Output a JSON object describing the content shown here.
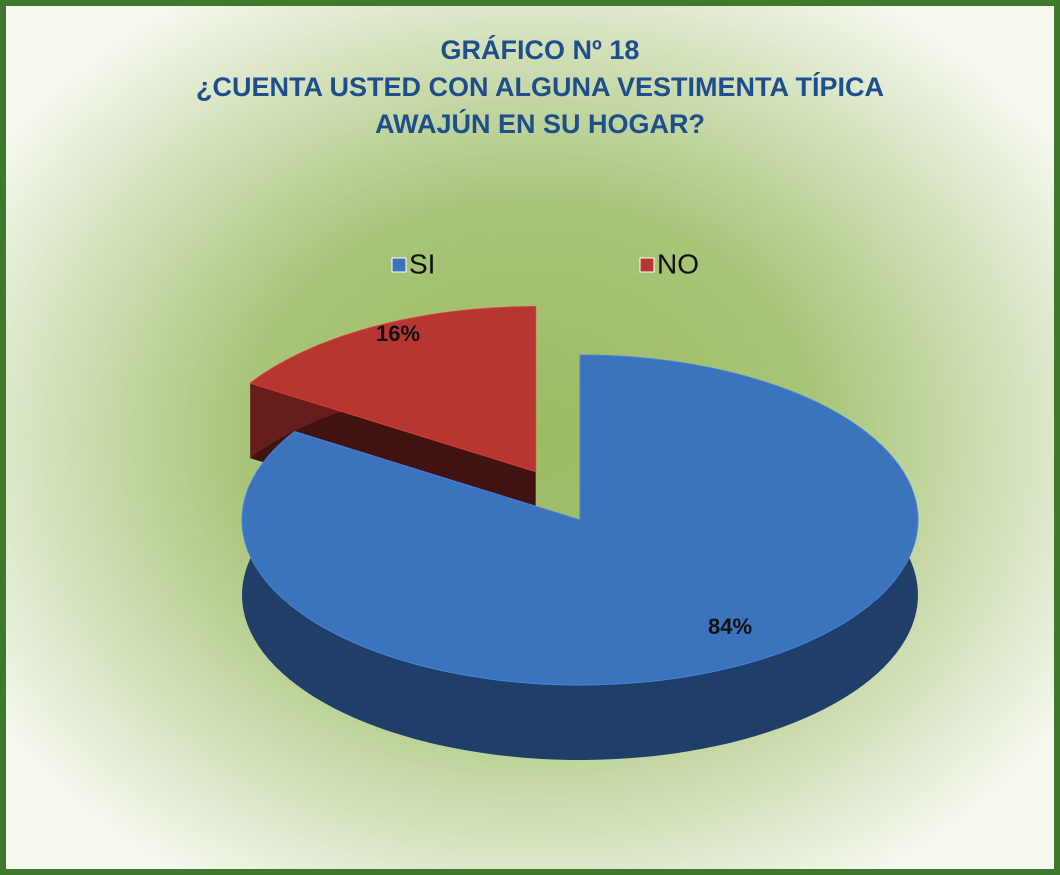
{
  "chart_data": {
    "type": "pie",
    "title": [
      "GRÁFICO Nº 18",
      "¿CUENTA USTED CON ALGUNA VESTIMENTA TÍPICA",
      "AWAJÚN EN SU HOGAR?"
    ],
    "categories": [
      "SI",
      "NO"
    ],
    "values": [
      84,
      16
    ],
    "value_labels": [
      "84%",
      "16%"
    ],
    "colors": [
      "#3b73bd",
      "#b83631"
    ],
    "legend": "top"
  }
}
